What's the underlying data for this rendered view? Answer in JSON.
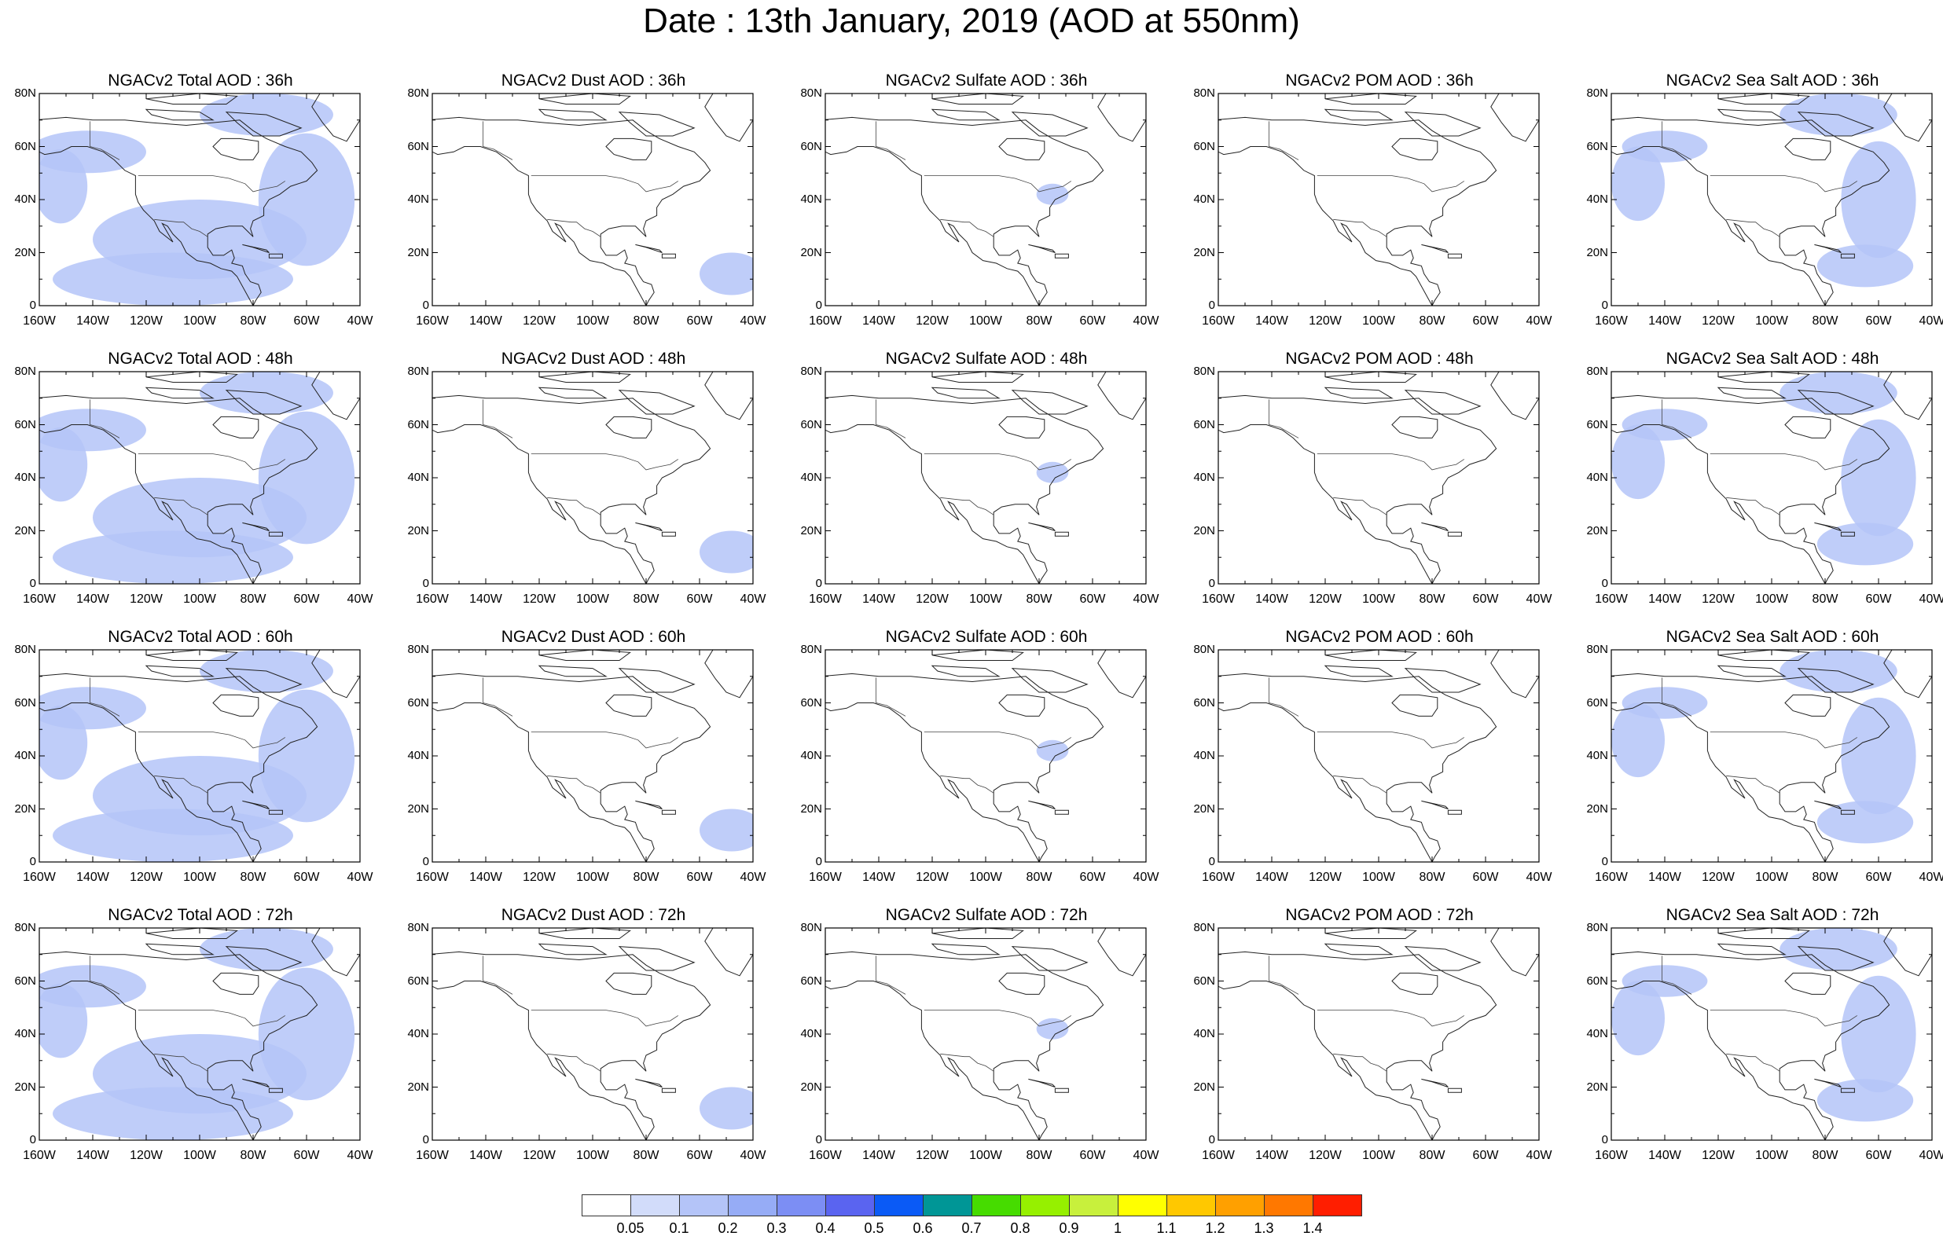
{
  "title": "Date : 13th January, 2019 (AOD at 550nm)",
  "lat_ticks": [
    "80N",
    "60N",
    "40N",
    "20N",
    "0"
  ],
  "lon_ticks": [
    "160W",
    "140W",
    "120W",
    "100W",
    "80W",
    "60W",
    "40W"
  ],
  "map_extent": {
    "lon_min": -160,
    "lon_max": -40,
    "lat_min": 0,
    "lat_max": 80
  },
  "panels": [
    {
      "title": "NGACv2 Total AOD : 36h",
      "species": "total",
      "level": 0.1
    },
    {
      "title": "NGACv2 Dust AOD : 36h",
      "species": "dust",
      "level": 0.1
    },
    {
      "title": "NGACv2 Sulfate AOD : 36h",
      "species": "sulfate",
      "level": 0.1
    },
    {
      "title": "NGACv2 POM AOD : 36h",
      "species": "pom",
      "level": 0.0
    },
    {
      "title": "NGACv2 Sea Salt AOD : 36h",
      "species": "seasalt",
      "level": 0.1
    },
    {
      "title": "NGACv2 Total AOD : 48h",
      "species": "total",
      "level": 0.1
    },
    {
      "title": "NGACv2 Dust AOD : 48h",
      "species": "dust",
      "level": 0.1
    },
    {
      "title": "NGACv2 Sulfate AOD : 48h",
      "species": "sulfate",
      "level": 0.1
    },
    {
      "title": "NGACv2 POM AOD : 48h",
      "species": "pom",
      "level": 0.0
    },
    {
      "title": "NGACv2 Sea Salt AOD : 48h",
      "species": "seasalt",
      "level": 0.1
    },
    {
      "title": "NGACv2 Total AOD : 60h",
      "species": "total",
      "level": 0.1
    },
    {
      "title": "NGACv2 Dust AOD : 60h",
      "species": "dust",
      "level": 0.1
    },
    {
      "title": "NGACv2 Sulfate AOD : 60h",
      "species": "sulfate",
      "level": 0.1
    },
    {
      "title": "NGACv2 POM AOD : 60h",
      "species": "pom",
      "level": 0.0
    },
    {
      "title": "NGACv2 Sea Salt AOD : 60h",
      "species": "seasalt",
      "level": 0.1
    },
    {
      "title": "NGACv2 Total AOD : 72h",
      "species": "total",
      "level": 0.1
    },
    {
      "title": "NGACv2 Dust AOD : 72h",
      "species": "dust",
      "level": 0.1
    },
    {
      "title": "NGACv2 Sulfate AOD : 72h",
      "species": "sulfate",
      "level": 0.1
    },
    {
      "title": "NGACv2 POM AOD : 72h",
      "species": "pom",
      "level": 0.0
    },
    {
      "title": "NGACv2 Sea Salt  AOD : 72h",
      "species": "seasalt",
      "level": 0.1
    }
  ],
  "colorbar": {
    "labels": [
      "0.05",
      "0.1",
      "0.2",
      "0.3",
      "0.4",
      "0.5",
      "0.6",
      "0.7",
      "0.8",
      "0.9",
      "1",
      "1.1",
      "1.2",
      "1.3",
      "1.4"
    ],
    "colors": [
      "#ffffff",
      "#d2dcfa",
      "#b4c4f8",
      "#96acf6",
      "#7c8ef4",
      "#5a64f0",
      "#0a5af6",
      "#009696",
      "#46dc00",
      "#96f000",
      "#c8f03c",
      "#ffff00",
      "#ffc800",
      "#ffa000",
      "#ff7800",
      "#ff1e00"
    ]
  }
}
